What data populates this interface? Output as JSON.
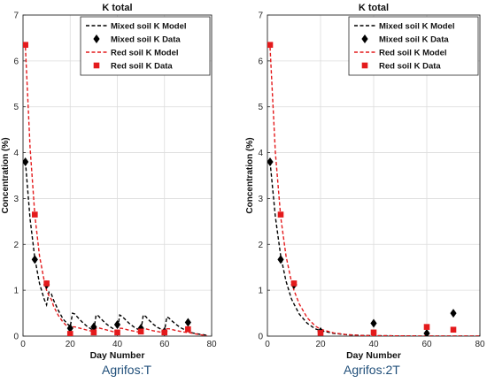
{
  "chart_data": [
    {
      "type": "line",
      "title": "K total",
      "xlabel": "Day Number",
      "ylabel": "Concentration (%)",
      "caption": "Agrifos:T",
      "xlim": [
        0,
        80
      ],
      "ylim": [
        0,
        7
      ],
      "xticks": [
        "0",
        "20",
        "40",
        "60",
        "80"
      ],
      "yticks": [
        "0",
        "1",
        "2",
        "3",
        "4",
        "5",
        "6",
        "7"
      ],
      "grid": true,
      "legend_position": "top-right",
      "series": [
        {
          "name": "Mixed soil K Model",
          "kind": "line",
          "color": "#000000",
          "dashed": true,
          "x": [
            1,
            3,
            5,
            7,
            9,
            10,
            11,
            12,
            13,
            15,
            17,
            19,
            20,
            21,
            22,
            23,
            25,
            27,
            29,
            30,
            31,
            32,
            33,
            35,
            37,
            39,
            40,
            41,
            42,
            43,
            45,
            47,
            49,
            50,
            51,
            52,
            53,
            55,
            57,
            59,
            60,
            61,
            62,
            63,
            65,
            67,
            69,
            70,
            72,
            75,
            78
          ],
          "y": [
            3.8,
            2.55,
            1.7,
            1.15,
            0.8,
            0.68,
            0.96,
            0.92,
            0.78,
            0.56,
            0.37,
            0.26,
            0.2,
            0.5,
            0.48,
            0.42,
            0.31,
            0.22,
            0.15,
            0.12,
            0.46,
            0.44,
            0.38,
            0.28,
            0.2,
            0.14,
            0.11,
            0.46,
            0.43,
            0.38,
            0.28,
            0.2,
            0.14,
            0.11,
            0.46,
            0.43,
            0.37,
            0.27,
            0.19,
            0.14,
            0.11,
            0.42,
            0.39,
            0.34,
            0.25,
            0.18,
            0.13,
            0.1,
            0.07,
            0.04,
            0.02
          ]
        },
        {
          "name": "Mixed soil K Data",
          "kind": "marker",
          "marker": "diamond",
          "color": "#000000",
          "x": [
            1,
            5,
            10,
            20,
            30,
            40,
            50,
            60,
            70
          ],
          "y": [
            3.8,
            1.67,
            1.12,
            0.17,
            0.2,
            0.25,
            0.17,
            0.1,
            0.3
          ]
        },
        {
          "name": "Red soil K Model",
          "kind": "line",
          "color": "#e41a1c",
          "dashed": true,
          "x": [
            1,
            3,
            5,
            7,
            9,
            10,
            11,
            12,
            13,
            15,
            17,
            19,
            20,
            21,
            22,
            25,
            28,
            30,
            31,
            32,
            35,
            38,
            40,
            41,
            42,
            45,
            48,
            50,
            51,
            52,
            55,
            58,
            60,
            61,
            62,
            65,
            68,
            70,
            72,
            75,
            78
          ],
          "y": [
            6.3,
            4.1,
            2.65,
            1.75,
            1.2,
            1.0,
            0.88,
            0.8,
            0.65,
            0.45,
            0.3,
            0.2,
            0.16,
            0.2,
            0.2,
            0.16,
            0.12,
            0.1,
            0.17,
            0.18,
            0.14,
            0.1,
            0.09,
            0.17,
            0.17,
            0.13,
            0.1,
            0.08,
            0.16,
            0.16,
            0.12,
            0.09,
            0.08,
            0.16,
            0.16,
            0.12,
            0.09,
            0.08,
            0.06,
            0.03,
            0.01
          ]
        },
        {
          "name": "Red soil K Data",
          "kind": "marker",
          "marker": "square",
          "color": "#e41a1c",
          "x": [
            1,
            5,
            10,
            20,
            30,
            40,
            50,
            60,
            70
          ],
          "y": [
            6.35,
            2.65,
            1.15,
            0.05,
            0.08,
            0.08,
            0.1,
            0.08,
            0.15
          ]
        }
      ]
    },
    {
      "type": "line",
      "title": "K total",
      "xlabel": "Day Number",
      "ylabel": "Concentration (%)",
      "caption": "Agrifos:2T",
      "xlim": [
        0,
        80
      ],
      "ylim": [
        0,
        7
      ],
      "xticks": [
        "0",
        "20",
        "40",
        "60",
        "80"
      ],
      "yticks": [
        "0",
        "1",
        "2",
        "3",
        "4",
        "5",
        "6",
        "7"
      ],
      "grid": true,
      "legend_position": "top-right",
      "series": [
        {
          "name": "Mixed soil K Model",
          "kind": "line",
          "color": "#000000",
          "dashed": true,
          "x": [
            1,
            3,
            5,
            7,
            9,
            10,
            12,
            15,
            18,
            20,
            25,
            30,
            35,
            40,
            50,
            60,
            70,
            80
          ],
          "y": [
            3.8,
            2.6,
            1.75,
            1.2,
            0.82,
            0.7,
            0.48,
            0.28,
            0.16,
            0.12,
            0.06,
            0.03,
            0.015,
            0.01,
            0.005,
            0.0,
            0.0,
            0.0
          ]
        },
        {
          "name": "Mixed soil K Data",
          "kind": "marker",
          "marker": "diamond",
          "color": "#000000",
          "x": [
            1,
            5,
            10,
            20,
            40,
            60,
            70
          ],
          "y": [
            3.8,
            1.67,
            1.12,
            0.1,
            0.28,
            0.06,
            0.5
          ]
        },
        {
          "name": "Red soil K Model",
          "kind": "line",
          "color": "#e41a1c",
          "dashed": true,
          "x": [
            1,
            3,
            5,
            7,
            9,
            10,
            12,
            15,
            18,
            20,
            25,
            30,
            35,
            40,
            50,
            60,
            70,
            80
          ],
          "y": [
            6.3,
            4.0,
            2.6,
            1.75,
            1.2,
            1.0,
            0.7,
            0.4,
            0.22,
            0.15,
            0.07,
            0.03,
            0.015,
            0.01,
            0.005,
            0.0,
            0.0,
            0.0
          ]
        },
        {
          "name": "Red soil K Data",
          "kind": "marker",
          "marker": "square",
          "color": "#e41a1c",
          "x": [
            1,
            5,
            10,
            20,
            40,
            60,
            70
          ],
          "y": [
            6.35,
            2.65,
            1.15,
            0.07,
            0.08,
            0.2,
            0.14
          ]
        }
      ]
    }
  ]
}
